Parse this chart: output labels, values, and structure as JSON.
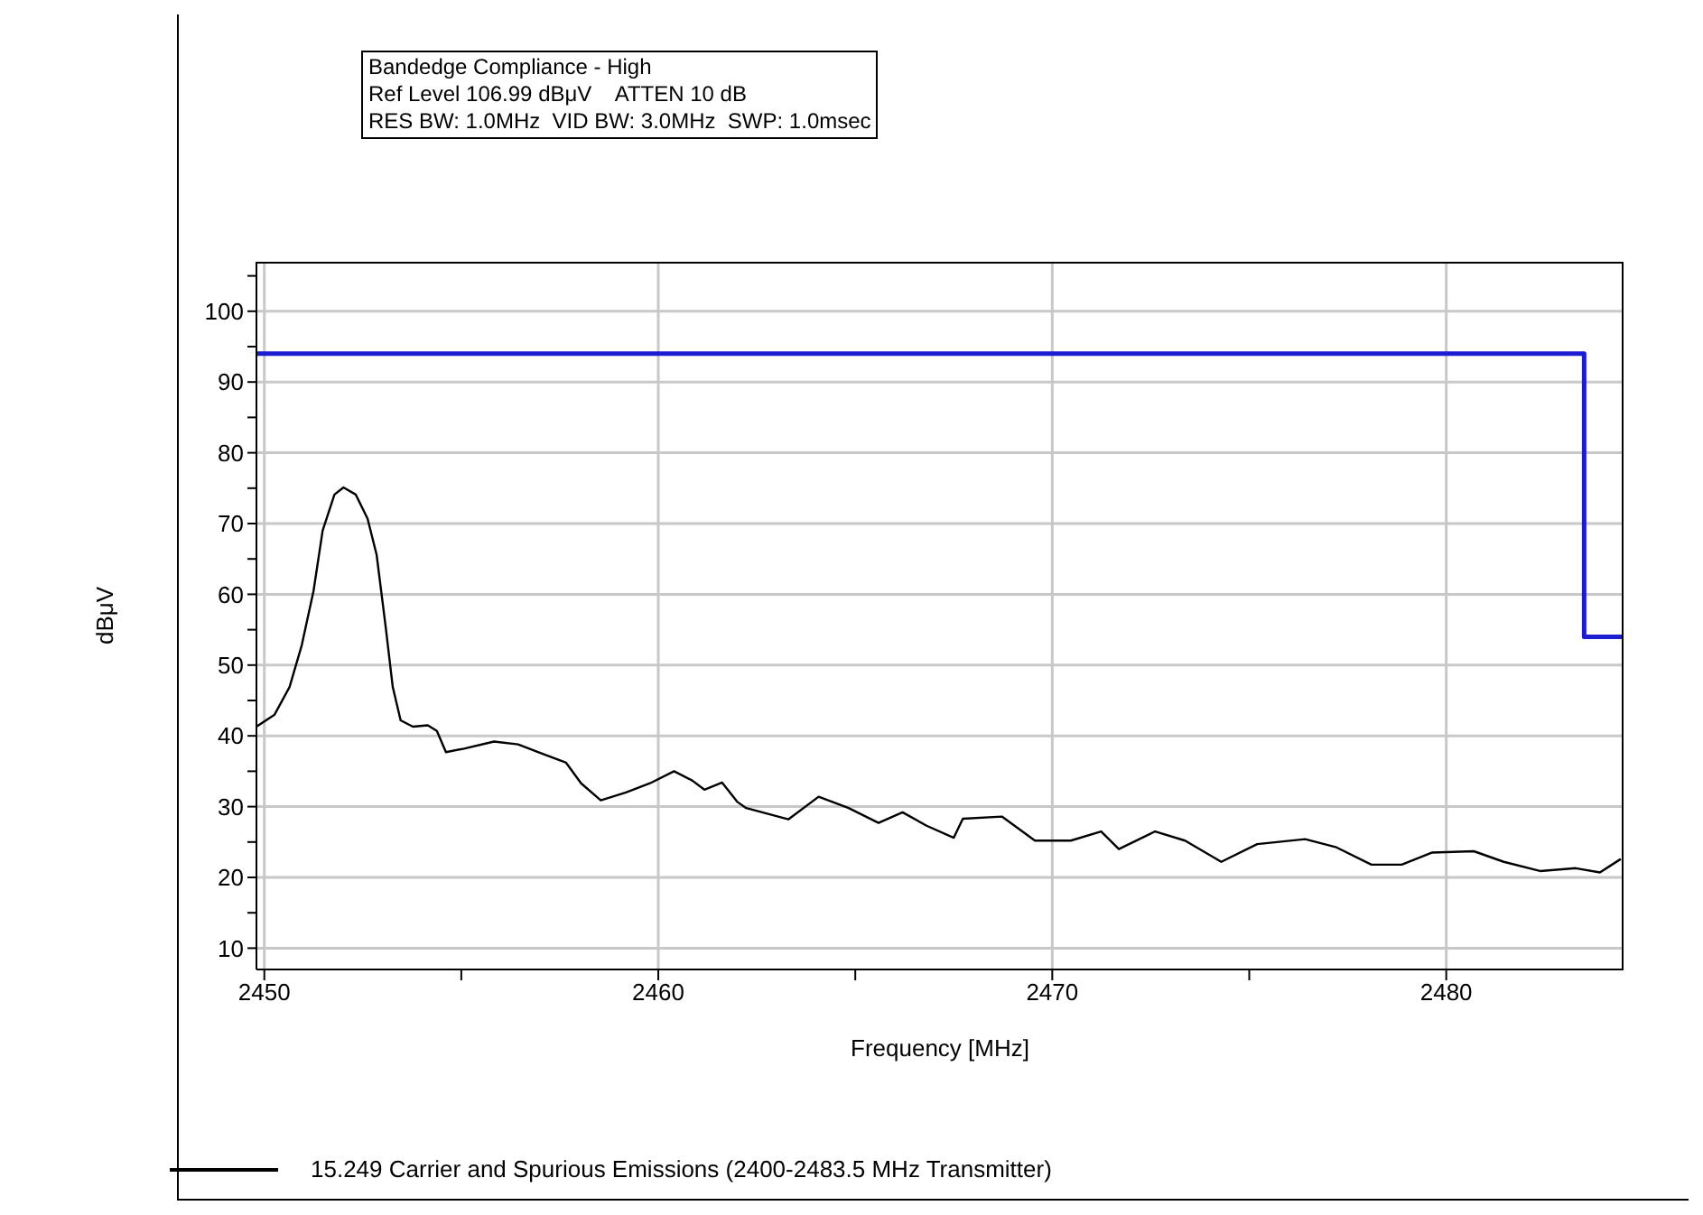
{
  "chart_data": {
    "type": "line",
    "title": "Bandedge Compliance - High",
    "subtitle": "Ref Level 106.99 dBμV    ATTEN 10 dB",
    "annotations": [
      "RES BW: 1.0MHz  VID BW: 3.0MHz  SWP: 1.0msec"
    ],
    "xlabel": "Frequency [MHz]",
    "ylabel": "dBμV",
    "xlim": [
      2449.8,
      2484.5
    ],
    "xticks": [
      2450,
      {
        "value": 2455,
        "label": null
      },
      2460,
      {
        "value": 2465,
        "label": null
      },
      2470,
      {
        "value": 2475,
        "label": null
      },
      2480
    ],
    "ylim": [
      6.99,
      106.99
    ],
    "yticks": [
      10,
      {
        "value": 15,
        "label": null
      },
      20,
      {
        "value": 25,
        "label": null
      },
      30,
      {
        "value": 35,
        "label": null
      },
      40,
      {
        "value": 45,
        "label": null
      },
      50,
      {
        "value": 55,
        "label": null
      },
      60,
      {
        "value": 65,
        "label": null
      },
      70,
      {
        "value": 75,
        "label": null
      },
      80,
      {
        "value": 85,
        "label": null
      },
      90,
      {
        "value": 95,
        "label": null
      },
      100,
      {
        "value": 105,
        "label": null
      }
    ],
    "grid": true,
    "legend": "bottom",
    "marker": "none",
    "line_style": "solid",
    "series": [
      {
        "name": "15.249 Carrier and Spurious Emissions (2400-2483.5 MHz Transmitter)",
        "color": "#000000",
        "x": [
          2449.8,
          2450.26,
          2450.64,
          2450.95,
          2451.25,
          2451.48,
          2451.78,
          2452.01,
          2452.32,
          2452.62,
          2452.85,
          2453.08,
          2453.26,
          2453.46,
          2453.77,
          2454.15,
          2454.38,
          2454.61,
          2455.07,
          2455.83,
          2456.44,
          2457.05,
          2457.66,
          2458.04,
          2458.54,
          2459.18,
          2459.79,
          2460.4,
          2460.86,
          2461.17,
          2461.62,
          2462.0,
          2462.23,
          2463.3,
          2464.07,
          2464.83,
          2465.59,
          2466.2,
          2466.81,
          2467.5,
          2467.73,
          2468.72,
          2469.56,
          2470.47,
          2471.24,
          2471.69,
          2472.61,
          2473.37,
          2474.29,
          2475.2,
          2476.42,
          2477.19,
          2478.1,
          2478.87,
          2479.63,
          2480.7,
          2481.46,
          2482.38,
          2483.29,
          2483.9,
          2484.43
        ],
        "values": [
          41.3,
          43.0,
          46.9,
          52.8,
          60.5,
          69.0,
          74.1,
          75.1,
          74.1,
          70.7,
          65.6,
          55.4,
          46.9,
          42.2,
          41.3,
          41.5,
          40.7,
          37.7,
          38.2,
          39.2,
          38.8,
          37.5,
          36.2,
          33.3,
          30.9,
          32.0,
          33.3,
          35.0,
          33.7,
          32.4,
          33.4,
          30.7,
          29.8,
          28.2,
          31.4,
          29.8,
          27.7,
          29.2,
          27.3,
          25.6,
          28.3,
          28.6,
          25.2,
          25.2,
          26.5,
          24.0,
          26.5,
          25.2,
          22.2,
          24.7,
          25.4,
          24.3,
          21.8,
          21.8,
          23.5,
          23.7,
          22.2,
          20.9,
          21.3,
          20.7,
          22.6
        ]
      },
      {
        "color": "#1c1cd0",
        "x": [
          2449.8,
          2483.5,
          2483.5,
          2484.5
        ],
        "values": [
          94,
          94,
          54,
          54
        ]
      }
    ]
  }
}
